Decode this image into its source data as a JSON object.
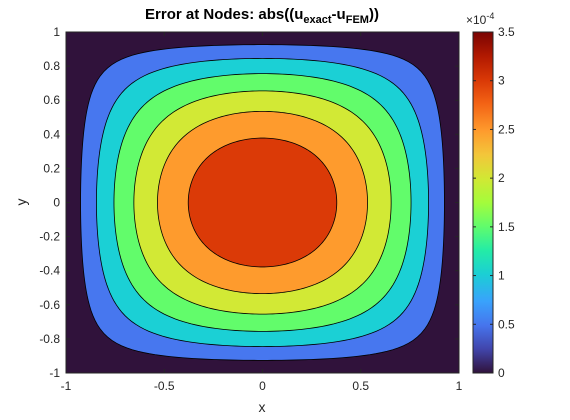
{
  "chart_data": {
    "type": "contour",
    "title": {
      "prefix": "Error at Nodes: abs((u",
      "sub1": "exact",
      "mid": "-u",
      "sub2": "FEM",
      "suffix": "))"
    },
    "xlabel": "x",
    "ylabel": "y",
    "xlim": [
      -1,
      1
    ],
    "ylim": [
      -1,
      1
    ],
    "x_ticks": [
      "-1",
      "-0.5",
      "0",
      "0.5",
      "1"
    ],
    "y_ticks": [
      "-1",
      "-0.8",
      "-0.6",
      "-0.4",
      "-0.2",
      "0",
      "0.2",
      "0.4",
      "0.6",
      "0.8",
      "1"
    ],
    "function": "3.5e-4 * (1 - x^2) * (1 - y^2) approx. (peak at center, zero on boundary)",
    "peak_value": 0.00035,
    "contour_levels": [
      0,
      5e-05,
      0.0001,
      0.00015,
      0.0002,
      0.00025,
      0.0003
    ],
    "colorbar": {
      "range": [
        0,
        3.5
      ],
      "multiplier": "×10",
      "exponent": "-4",
      "ticks": [
        "0",
        "0.5",
        "1",
        "1.5",
        "2",
        "2.5",
        "3",
        "3.5"
      ],
      "colormap": "turbo"
    },
    "fill_colors": [
      "#30123b",
      "#4777ef",
      "#1bd0d5",
      "#62fc6b",
      "#d2e935",
      "#fe9b2d",
      "#db3a07",
      "#7a0403"
    ]
  }
}
